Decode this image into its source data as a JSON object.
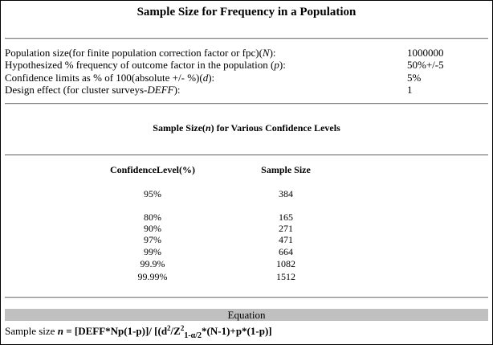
{
  "title": "Sample Size for Frequency in a Population",
  "parameters": [
    {
      "label_pre": "Population size(for finite population correction factor or fpc)(",
      "symbol": "N",
      "label_post": "):",
      "value": "1000000"
    },
    {
      "label_pre": "Hypothesized % frequency of outcome factor in the population (",
      "symbol": "p",
      "label_post": "):",
      "value": "50%+/-5"
    },
    {
      "label_pre": "Confidence limits as % of 100(absolute +/- %)(",
      "symbol": "d",
      "label_post": "):",
      "value": "5%"
    },
    {
      "label_pre": "Design effect (for cluster surveys-",
      "symbol": "DEFF",
      "label_post": "):",
      "value": "1"
    }
  ],
  "results": {
    "heading_pre": "Sample Size(",
    "heading_symbol": "n",
    "heading_post": ") for Various Confidence Levels",
    "col_confidence": "ConfidenceLevel(%)",
    "col_sample": "Sample Size",
    "rows": [
      {
        "level": "95%",
        "size": "384"
      },
      {
        "level": "80%",
        "size": "165"
      },
      {
        "level": "90%",
        "size": "271"
      },
      {
        "level": "97%",
        "size": "471"
      },
      {
        "level": "99%",
        "size": "664"
      },
      {
        "level": "99.9%",
        "size": "1082"
      },
      {
        "level": "99.99%",
        "size": "1512"
      }
    ]
  },
  "equation": {
    "heading": "Equation",
    "prefix": "Sample size ",
    "n_symbol": "n",
    "eq_part1": " = [DEFF*Np(1-p)]/ [(d",
    "sup1": "2",
    "eq_part2": "/Z",
    "sup2": "2",
    "subscript": "1-α/2",
    "eq_part3": "*(N-1)+p*(1-p)]"
  }
}
